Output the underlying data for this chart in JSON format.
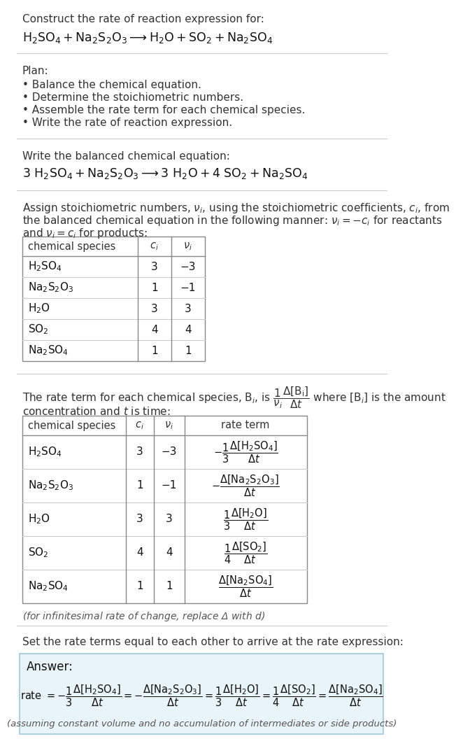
{
  "bg_color": "#ffffff",
  "text_color": "#222222",
  "title_text": "Construct the rate of reaction expression for:",
  "reaction_unbalanced": "$\\mathrm{H_2SO_4 + Na_2S_2O_3 \\longrightarrow H_2O + SO_2 + Na_2SO_4}$",
  "plan_header": "Plan:",
  "plan_items": [
    "\\u2022 Balance the chemical equation.",
    "\\u2022 Determine the stoichiometric numbers.",
    "\\u2022 Assemble the rate term for each chemical species.",
    "\\u2022 Write the rate of reaction expression."
  ],
  "balanced_header": "Write the balanced chemical equation:",
  "reaction_balanced": "$\\mathrm{3\\ H_2SO_4 + Na_2S_2O_3 \\longrightarrow 3\\ H_2O + 4\\ SO_2 + Na_2SO_4}$",
  "stoich_line1": "Assign stoichiometric numbers, $\\nu_i$, using the stoichiometric coefficients, $c_i$, from",
  "stoich_line2": "the balanced chemical equation in the following manner: $\\nu_i = -c_i$ for reactants",
  "stoich_line3": "and $\\nu_i = c_i$ for products:",
  "table1_headers": [
    "chemical species",
    "$c_i$",
    "$\\nu_i$"
  ],
  "table1_rows": [
    [
      "$\\mathrm{H_2SO_4}$",
      "3",
      "−3"
    ],
    [
      "$\\mathrm{Na_2S_2O_3}$",
      "1",
      "−1"
    ],
    [
      "$\\mathrm{H_2O}$",
      "3",
      "3"
    ],
    [
      "$\\mathrm{SO_2}$",
      "4",
      "4"
    ],
    [
      "$\\mathrm{Na_2SO_4}$",
      "1",
      "1"
    ]
  ],
  "rate_line1": "The rate term for each chemical species, B$_i$, is $\\dfrac{1}{\\nu_i}\\dfrac{\\Delta[\\mathrm{B_i}]}{\\Delta t}$ where [B$_i$] is the amount",
  "rate_line2": "concentration and $t$ is time:",
  "table2_headers": [
    "chemical species",
    "$c_i$",
    "$\\nu_i$",
    "rate term"
  ],
  "table2_rows": [
    [
      "$\\mathrm{H_2SO_4}$",
      "3",
      "−3",
      "$-\\dfrac{1}{3}\\dfrac{\\Delta[\\mathrm{H_2SO_4}]}{\\Delta t}$"
    ],
    [
      "$\\mathrm{Na_2S_2O_3}$",
      "1",
      "−1",
      "$-\\dfrac{\\Delta[\\mathrm{Na_2S_2O_3}]}{\\Delta t}$"
    ],
    [
      "$\\mathrm{H_2O}$",
      "3",
      "3",
      "$\\dfrac{1}{3}\\dfrac{\\Delta[\\mathrm{H_2O}]}{\\Delta t}$"
    ],
    [
      "$\\mathrm{SO_2}$",
      "4",
      "4",
      "$\\dfrac{1}{4}\\dfrac{\\Delta[\\mathrm{SO_2}]}{\\Delta t}$"
    ],
    [
      "$\\mathrm{Na_2SO_4}$",
      "1",
      "1",
      "$\\dfrac{\\Delta[\\mathrm{Na_2SO_4}]}{\\Delta t}$"
    ]
  ],
  "delta_note": "(for infinitesimal rate of change, replace Δ with $d$)",
  "set_equal_text": "Set the rate terms equal to each other to arrive at the rate expression:",
  "answer_label": "Answer:",
  "rate_expression": "rate $= -\\dfrac{1}{3}\\dfrac{\\Delta[\\mathrm{H_2SO_4}]}{\\Delta t} = -\\dfrac{\\Delta[\\mathrm{Na_2S_2O_3}]}{\\Delta t} = \\dfrac{1}{3}\\dfrac{\\Delta[\\mathrm{H_2O}]}{\\Delta t} = \\dfrac{1}{4}\\dfrac{\\Delta[\\mathrm{SO_2}]}{\\Delta t} = \\dfrac{\\Delta[\\mathrm{Na_2SO_4}]}{\\Delta t}$",
  "answer_note": "(assuming constant volume and no accumulation of intermediates or side products)"
}
